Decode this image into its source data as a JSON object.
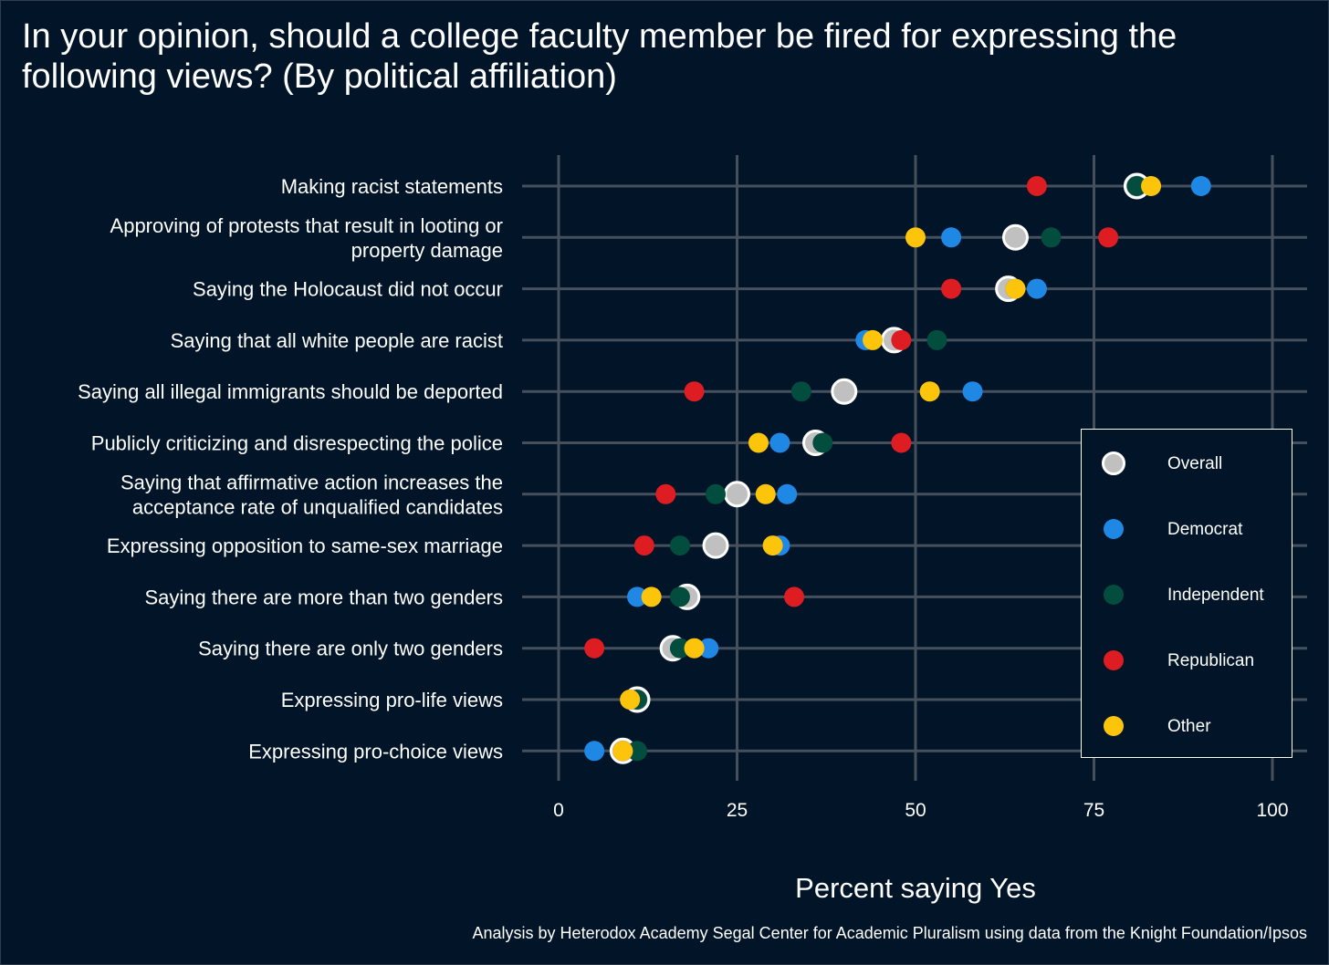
{
  "title": "In your opinion, should a college faculty member be fired for expressing the following views? (By political affiliation)",
  "xlabel": "Percent saying Yes",
  "caption": "Analysis by Heterodox Academy Segal Center for Academic Pluralism using data from the Knight Foundation/Ipsos",
  "legend": {
    "items": [
      {
        "label": "Overall",
        "color": "#c0c0c0"
      },
      {
        "label": "Democrat",
        "color": "#1f88e5"
      },
      {
        "label": "Independent",
        "color": "#024d3d"
      },
      {
        "label": "Republican",
        "color": "#de1d22"
      },
      {
        "label": "Other",
        "color": "#fcc50c"
      }
    ]
  },
  "chart_data": {
    "type": "scatter",
    "xlim": [
      0,
      100
    ],
    "xticks": [
      0,
      25,
      50,
      75,
      100
    ],
    "grid": true,
    "legend_position": "right",
    "categories": [
      [
        "Making racist statements"
      ],
      [
        "Approving of protests that result in looting or",
        "property damage"
      ],
      [
        "Saying the Holocaust did not occur"
      ],
      [
        "Saying that all white people are racist"
      ],
      [
        "Saying all illegal immigrants should be deported"
      ],
      [
        "Publicly criticizing and disrespecting the police"
      ],
      [
        "Saying that affirmative action increases the",
        "acceptance rate of unqualified candidates"
      ],
      [
        "Expressing opposition to same-sex marriage"
      ],
      [
        "Saying there are more than two genders"
      ],
      [
        "Saying there are only two genders"
      ],
      [
        "Expressing pro-life views"
      ],
      [
        "Expressing pro-choice views"
      ]
    ],
    "series": [
      {
        "name": "Overall",
        "color": "#c0c0c0",
        "values": [
          81,
          64,
          63,
          47,
          40,
          36,
          25,
          22,
          18,
          16,
          11,
          9
        ]
      },
      {
        "name": "Democrat",
        "color": "#1f88e5",
        "values": [
          90,
          55,
          67,
          43,
          58,
          31,
          32,
          31,
          11,
          21,
          10,
          5
        ]
      },
      {
        "name": "Independent",
        "color": "#024d3d",
        "values": [
          81,
          69,
          64,
          53,
          34,
          37,
          22,
          17,
          17,
          17,
          11,
          11
        ]
      },
      {
        "name": "Republican",
        "color": "#de1d22",
        "values": [
          67,
          77,
          55,
          48,
          19,
          48,
          15,
          12,
          33,
          5,
          10,
          9
        ]
      },
      {
        "name": "Other",
        "color": "#fcc50c",
        "values": [
          83,
          50,
          64,
          44,
          52,
          28,
          29,
          30,
          13,
          19,
          10,
          9
        ]
      }
    ]
  }
}
